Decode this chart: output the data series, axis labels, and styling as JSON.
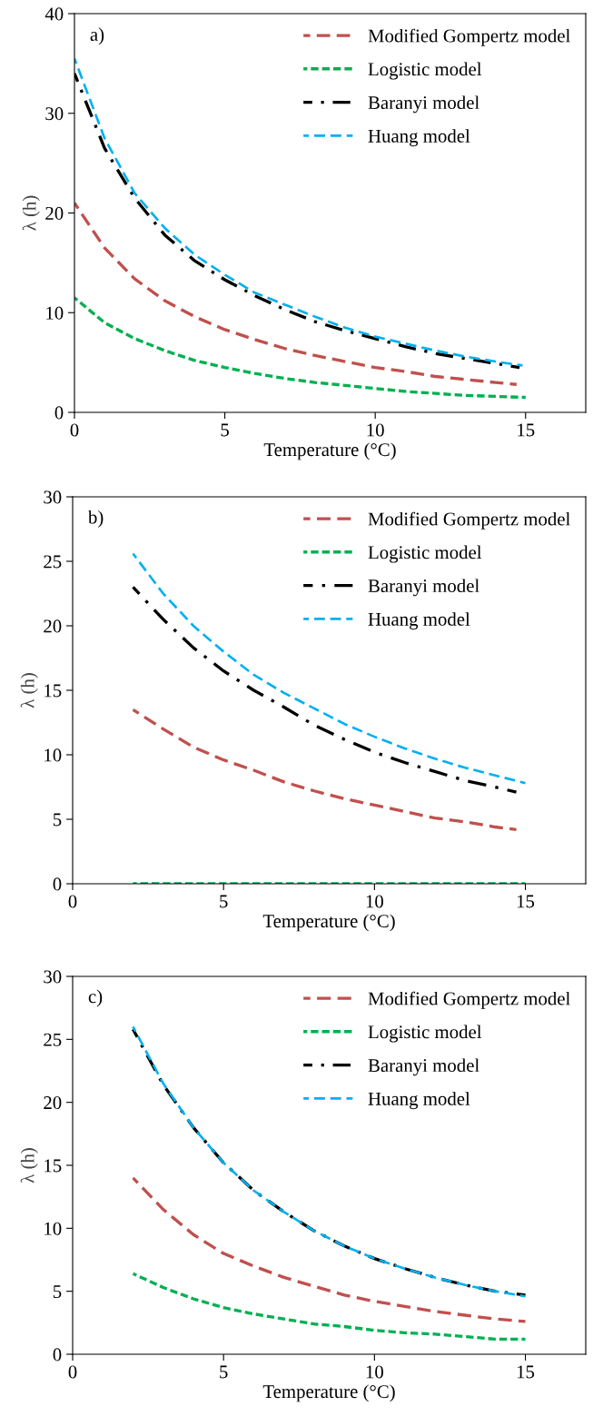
{
  "chart_data": [
    {
      "type": "line",
      "xlabel": "Temperature (°C)",
      "ylabel": "λ (h)",
      "annotations": [
        "a)"
      ],
      "xlim": [
        0,
        17
      ],
      "xticks": [
        0,
        5,
        10,
        15
      ],
      "ylim": [
        0,
        40
      ],
      "yticks": [
        0,
        10,
        20,
        30,
        40
      ],
      "legend": "top right",
      "grid": false,
      "series": [
        {
          "name": "Modified Gompertz model",
          "color": "#c0504d",
          "line_style": "dashed",
          "x": [
            0,
            1,
            2,
            3,
            4,
            5,
            6,
            7,
            8,
            9,
            10,
            11,
            12,
            13,
            14,
            14.7
          ],
          "values": [
            21,
            16.5,
            13.4,
            11.2,
            9.6,
            8.3,
            7.3,
            6.4,
            5.7,
            5.1,
            4.5,
            4.1,
            3.6,
            3.3,
            3.0,
            2.8
          ]
        },
        {
          "name": "Logistic model",
          "color": "#00b050",
          "line_style": "dotted",
          "x": [
            0,
            1,
            2,
            3,
            4,
            5,
            6,
            7,
            8,
            9,
            10,
            11,
            12,
            13,
            14,
            15
          ],
          "values": [
            11.5,
            9,
            7.4,
            6.2,
            5.2,
            4.5,
            3.9,
            3.4,
            3.0,
            2.7,
            2.4,
            2.1,
            1.9,
            1.7,
            1.6,
            1.5
          ]
        },
        {
          "name": "Baranyi model",
          "color": "#000000",
          "line_style": "dashdot",
          "x": [
            0,
            1,
            2,
            3,
            4,
            5,
            6,
            7,
            8,
            9,
            10,
            11,
            12,
            13,
            14,
            14.8
          ],
          "values": [
            34,
            26.5,
            21.5,
            17.8,
            15.2,
            13.3,
            11.7,
            10.3,
            9.1,
            8.2,
            7.4,
            6.6,
            5.9,
            5.4,
            4.9,
            4.5
          ]
        },
        {
          "name": "Huang model",
          "color": "#00b0f0",
          "line_style": "dashed",
          "x": [
            0,
            1,
            2,
            3,
            4,
            5,
            6,
            7,
            8,
            9,
            10,
            11,
            12,
            13,
            14,
            14.9
          ],
          "values": [
            35.5,
            27.5,
            22,
            18.5,
            15.8,
            13.8,
            12,
            10.8,
            9.6,
            8.5,
            7.6,
            6.9,
            6.2,
            5.6,
            5.1,
            4.7
          ]
        }
      ]
    },
    {
      "type": "line",
      "xlabel": "Temperature (°C)",
      "ylabel": "λ (h)",
      "annotations": [
        "b)"
      ],
      "xlim": [
        0,
        17
      ],
      "xticks": [
        0,
        5,
        10,
        15
      ],
      "ylim": [
        0,
        30
      ],
      "yticks": [
        0,
        5,
        10,
        15,
        20,
        25,
        30
      ],
      "legend": "top right",
      "grid": false,
      "series": [
        {
          "name": "Modified Gompertz model",
          "color": "#c0504d",
          "line_style": "dashed",
          "x": [
            2,
            3,
            4,
            5,
            6,
            7,
            8,
            9,
            10,
            11,
            12,
            13,
            14,
            14.7
          ],
          "values": [
            13.5,
            12,
            10.6,
            9.6,
            8.8,
            7.9,
            7.2,
            6.6,
            6.1,
            5.6,
            5.1,
            4.8,
            4.4,
            4.2
          ]
        },
        {
          "name": "Logistic model",
          "color": "#00b050",
          "line_style": "dotted",
          "x": [
            2,
            3,
            4,
            5,
            6,
            7,
            8,
            9,
            10,
            11,
            12,
            13,
            14,
            15
          ],
          "values": [
            0,
            0,
            0,
            0,
            0,
            0,
            0,
            0,
            0,
            0,
            0,
            0,
            0,
            0
          ]
        },
        {
          "name": "Baranyi model",
          "color": "#000000",
          "line_style": "dashdot",
          "x": [
            2,
            3,
            4,
            5,
            6,
            7,
            8,
            9,
            10,
            11,
            12,
            13,
            14,
            14.7
          ],
          "values": [
            23,
            20.5,
            18.3,
            16.5,
            15,
            13.7,
            12.3,
            11.2,
            10.2,
            9.4,
            8.7,
            8.0,
            7.5,
            7.1
          ]
        },
        {
          "name": "Huang model",
          "color": "#00b0f0",
          "line_style": "dashed",
          "x": [
            2,
            3,
            4,
            5,
            6,
            7,
            8,
            9,
            10,
            11,
            12,
            13,
            14,
            15
          ],
          "values": [
            25.6,
            22.5,
            20,
            18,
            16.2,
            14.8,
            13.6,
            12.4,
            11.4,
            10.5,
            9.7,
            9,
            8.4,
            7.8
          ]
        }
      ]
    },
    {
      "type": "line",
      "xlabel": "Temperature (°C)",
      "ylabel": "λ (h)",
      "annotations": [
        "c)"
      ],
      "xlim": [
        0,
        17
      ],
      "xticks": [
        0,
        5,
        10,
        15
      ],
      "ylim": [
        0,
        30
      ],
      "yticks": [
        0,
        5,
        10,
        15,
        20,
        25,
        30
      ],
      "legend": "top right",
      "grid": false,
      "series": [
        {
          "name": "Modified Gompertz model",
          "color": "#c0504d",
          "line_style": "dashed",
          "x": [
            2,
            3,
            4,
            5,
            6,
            7,
            8,
            9,
            10,
            11,
            12,
            13,
            14,
            15
          ],
          "values": [
            14,
            11.5,
            9.5,
            8,
            7,
            6.1,
            5.4,
            4.7,
            4.2,
            3.8,
            3.4,
            3.1,
            2.8,
            2.6
          ]
        },
        {
          "name": "Logistic model",
          "color": "#00b050",
          "line_style": "dotted",
          "x": [
            2,
            3,
            4,
            5,
            6,
            7,
            8,
            9,
            10,
            11,
            12,
            13,
            14,
            15
          ],
          "values": [
            6.4,
            5.3,
            4.4,
            3.7,
            3.2,
            2.8,
            2.4,
            2.2,
            1.9,
            1.7,
            1.6,
            1.4,
            1.2,
            1.2
          ]
        },
        {
          "name": "Baranyi model",
          "color": "#000000",
          "line_style": "dashdot",
          "x": [
            2,
            3,
            4,
            5,
            6,
            7,
            8,
            9,
            10,
            11,
            12,
            13,
            14,
            15
          ],
          "values": [
            25.8,
            21.4,
            18,
            15.2,
            13,
            11.3,
            9.8,
            8.6,
            7.6,
            6.8,
            6.1,
            5.5,
            5.0,
            4.7
          ]
        },
        {
          "name": "Huang model",
          "color": "#00b0f0",
          "line_style": "dashed",
          "x": [
            2,
            3,
            4,
            5,
            6,
            7,
            8,
            9,
            10,
            11,
            12,
            13,
            14,
            15
          ],
          "values": [
            26,
            21.5,
            18,
            15.2,
            13,
            11.3,
            9.8,
            8.6,
            7.6,
            6.8,
            6.1,
            5.5,
            5.0,
            4.6
          ]
        }
      ]
    }
  ]
}
